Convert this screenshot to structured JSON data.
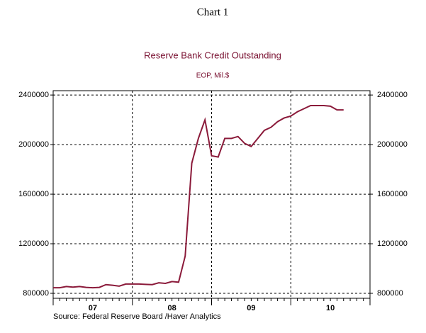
{
  "chart_data": {
    "type": "line",
    "chart_number": "Chart 1",
    "title": "Reserve Bank Credit Outstanding",
    "subtitle": "EOP, Mil.$",
    "source": "Source:  Federal Reserve Board /Haver Analytics",
    "categories": [
      null,
      null,
      null,
      null,
      null,
      null,
      "07",
      null,
      null,
      null,
      null,
      null,
      null,
      null,
      null,
      null,
      null,
      null,
      "08",
      null,
      null,
      null,
      null,
      null,
      null,
      null,
      null,
      null,
      null,
      null,
      "09",
      null,
      null,
      null,
      null,
      null,
      null,
      null,
      null,
      null,
      null,
      null,
      "10",
      null,
      null
    ],
    "series": [
      {
        "color": "#8b1a3a",
        "values": [
          845000,
          845000,
          855000,
          850000,
          855000,
          848000,
          845000,
          848000,
          870000,
          865000,
          858000,
          875000,
          875000,
          875000,
          872000,
          870000,
          885000,
          880000,
          895000,
          890000,
          1100000,
          1850000,
          2050000,
          2200000,
          1910000,
          1900000,
          2050000,
          2050000,
          2065000,
          2010000,
          1985000,
          2050000,
          2115000,
          2140000,
          2185000,
          2215000,
          2230000,
          2265000,
          2290000,
          2315000,
          2315000,
          2315000,
          2310000,
          2280000,
          2280000
        ]
      }
    ],
    "ylim": [
      760000,
      2435000
    ],
    "yticks": [
      800000,
      1200000,
      1600000,
      2000000,
      2400000
    ],
    "grid": true
  }
}
